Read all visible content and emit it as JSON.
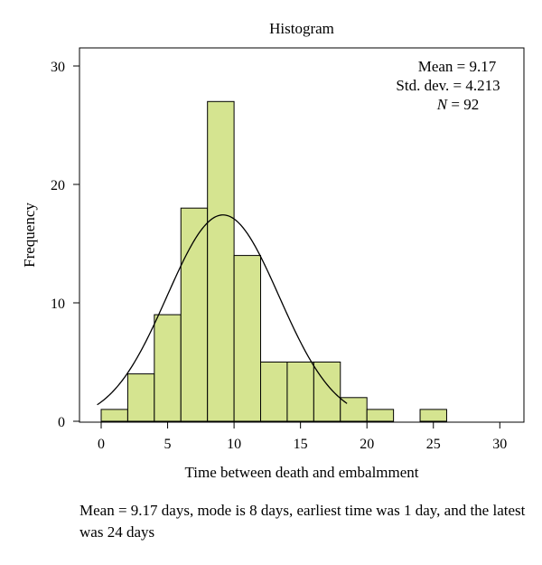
{
  "chart_data": {
    "type": "bar",
    "title": "Histogram",
    "xlabel": "Time between death and embalmment",
    "ylabel": "Frequency",
    "xlim": [
      -2,
      31
    ],
    "ylim": [
      0,
      32
    ],
    "x_ticks": [
      0,
      5,
      10,
      15,
      20,
      25,
      30
    ],
    "y_ticks": [
      0,
      10,
      20,
      30
    ],
    "bin_width": 2,
    "bins": [
      {
        "start": 0,
        "end": 2,
        "count": 1
      },
      {
        "start": 2,
        "end": 4,
        "count": 4
      },
      {
        "start": 4,
        "end": 6,
        "count": 9
      },
      {
        "start": 6,
        "end": 8,
        "count": 18
      },
      {
        "start": 8,
        "end": 10,
        "count": 27
      },
      {
        "start": 10,
        "end": 12,
        "count": 14
      },
      {
        "start": 12,
        "end": 14,
        "count": 5
      },
      {
        "start": 14,
        "end": 16,
        "count": 5
      },
      {
        "start": 16,
        "end": 18,
        "count": 5
      },
      {
        "start": 18,
        "end": 20,
        "count": 2
      },
      {
        "start": 20,
        "end": 22,
        "count": 1
      },
      {
        "start": 22,
        "end": 24,
        "count": 0
      },
      {
        "start": 24,
        "end": 26,
        "count": 1
      },
      {
        "start": 26,
        "end": 28,
        "count": 0
      },
      {
        "start": 28,
        "end": 30,
        "count": 0
      }
    ],
    "normal_curve": {
      "mean": 9.17,
      "std": 4.213,
      "n": 92
    },
    "stats_text": [
      "Mean = 9.17",
      "Std. dev. = 4.213",
      "N = 92"
    ],
    "grid": false,
    "bar_color": "#d5e490",
    "bar_edge_color": "#000000"
  },
  "caption": "Mean = 9.17 days, mode is 8 days, earliest time was 1 day, and the latest was 24 days"
}
